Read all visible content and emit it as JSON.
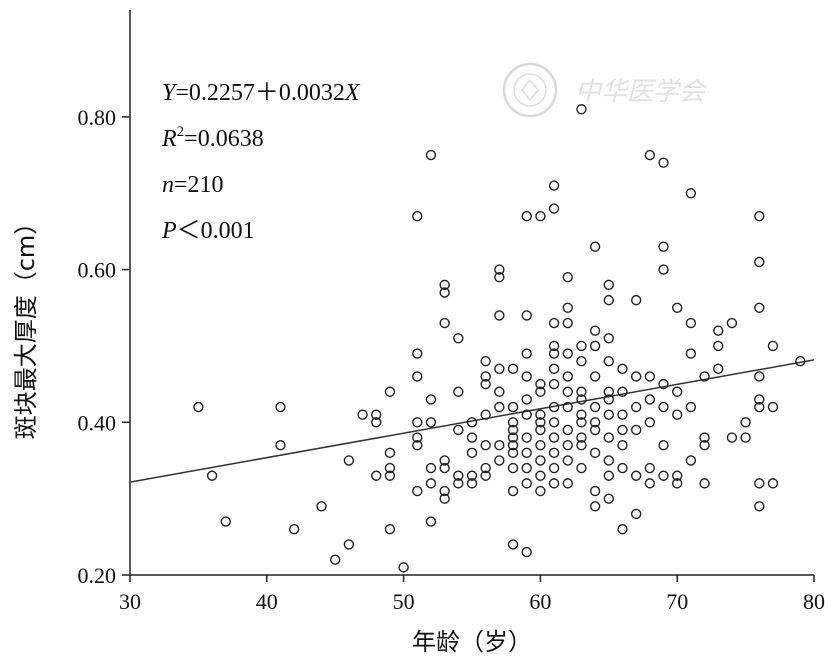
{
  "chart_data": {
    "type": "scatter",
    "xlabel": "年龄（岁）",
    "ylabel": "斑块最大厚度（cm）",
    "xlim": [
      30,
      80
    ],
    "ylim": [
      0.2,
      0.94
    ],
    "xticks": [
      30,
      40,
      50,
      60,
      70,
      80
    ],
    "yticks": [
      0.2,
      0.4,
      0.6,
      0.8
    ],
    "ytick_labels": [
      "0.20",
      "0.40",
      "0.60",
      "0.80"
    ],
    "xtick_labels": [
      "30",
      "40",
      "50",
      "60",
      "70",
      "80"
    ],
    "grid": false,
    "regression": {
      "intercept": 0.2257,
      "slope": 0.0032
    },
    "stats": {
      "equation_var": "Y",
      "equation_rest": "=0.2257＋0.0032",
      "equation_x": "X",
      "r2_var": "R",
      "r2_sup": "2",
      "r2_rest": "=0.0638",
      "n_var": "n",
      "n_rest": "=210",
      "p_var": "P",
      "p_rest": "＜0.001"
    },
    "watermark_text": "中华医学会",
    "points": [
      [
        35,
        0.42
      ],
      [
        36,
        0.33
      ],
      [
        37,
        0.27
      ],
      [
        41,
        0.42
      ],
      [
        41,
        0.37
      ],
      [
        42,
        0.26
      ],
      [
        44,
        0.29
      ],
      [
        45,
        0.22
      ],
      [
        46,
        0.24
      ],
      [
        46,
        0.35
      ],
      [
        47,
        0.41
      ],
      [
        48,
        0.41
      ],
      [
        48,
        0.4
      ],
      [
        48,
        0.33
      ],
      [
        49,
        0.44
      ],
      [
        49,
        0.36
      ],
      [
        49,
        0.34
      ],
      [
        49,
        0.33
      ],
      [
        49,
        0.26
      ],
      [
        50,
        0.21
      ],
      [
        51,
        0.67
      ],
      [
        51,
        0.49
      ],
      [
        51,
        0.46
      ],
      [
        51,
        0.38
      ],
      [
        51,
        0.37
      ],
      [
        51,
        0.31
      ],
      [
        52,
        0.75
      ],
      [
        52,
        0.43
      ],
      [
        52,
        0.4
      ],
      [
        52,
        0.34
      ],
      [
        52,
        0.32
      ],
      [
        52,
        0.27
      ],
      [
        53,
        0.58
      ],
      [
        53,
        0.57
      ],
      [
        53,
        0.53
      ],
      [
        53,
        0.35
      ],
      [
        53,
        0.34
      ],
      [
        53,
        0.31
      ],
      [
        53,
        0.3
      ],
      [
        54,
        0.51
      ],
      [
        54,
        0.44
      ],
      [
        54,
        0.39
      ],
      [
        54,
        0.33
      ],
      [
        54,
        0.32
      ],
      [
        55,
        0.4
      ],
      [
        55,
        0.36
      ],
      [
        55,
        0.33
      ],
      [
        55,
        0.32
      ],
      [
        56,
        0.48
      ],
      [
        56,
        0.46
      ],
      [
        56,
        0.45
      ],
      [
        56,
        0.41
      ],
      [
        56,
        0.37
      ],
      [
        56,
        0.34
      ],
      [
        56,
        0.33
      ],
      [
        57,
        0.6
      ],
      [
        57,
        0.59
      ],
      [
        57,
        0.54
      ],
      [
        57,
        0.47
      ],
      [
        57,
        0.44
      ],
      [
        57,
        0.42
      ],
      [
        57,
        0.37
      ],
      [
        57,
        0.35
      ],
      [
        58,
        0.47
      ],
      [
        58,
        0.42
      ],
      [
        58,
        0.4
      ],
      [
        58,
        0.39
      ],
      [
        58,
        0.37
      ],
      [
        58,
        0.36
      ],
      [
        58,
        0.34
      ],
      [
        58,
        0.31
      ],
      [
        58,
        0.24
      ],
      [
        59,
        0.67
      ],
      [
        59,
        0.54
      ],
      [
        59,
        0.49
      ],
      [
        59,
        0.46
      ],
      [
        59,
        0.43
      ],
      [
        59,
        0.41
      ],
      [
        59,
        0.38
      ],
      [
        59,
        0.36
      ],
      [
        59,
        0.34
      ],
      [
        59,
        0.32
      ],
      [
        59,
        0.23
      ],
      [
        60,
        0.67
      ],
      [
        60,
        0.45
      ],
      [
        60,
        0.44
      ],
      [
        60,
        0.4
      ],
      [
        60,
        0.39
      ],
      [
        60,
        0.37
      ],
      [
        60,
        0.35
      ],
      [
        60,
        0.33
      ],
      [
        60,
        0.31
      ],
      [
        61,
        0.71
      ],
      [
        61,
        0.68
      ],
      [
        61,
        0.53
      ],
      [
        61,
        0.5
      ],
      [
        61,
        0.49
      ],
      [
        61,
        0.47
      ],
      [
        61,
        0.45
      ],
      [
        61,
        0.42
      ],
      [
        61,
        0.4
      ],
      [
        61,
        0.38
      ],
      [
        61,
        0.36
      ],
      [
        61,
        0.34
      ],
      [
        61,
        0.32
      ],
      [
        62,
        0.59
      ],
      [
        62,
        0.55
      ],
      [
        62,
        0.53
      ],
      [
        62,
        0.49
      ],
      [
        62,
        0.46
      ],
      [
        62,
        0.44
      ],
      [
        62,
        0.42
      ],
      [
        62,
        0.39
      ],
      [
        62,
        0.37
      ],
      [
        62,
        0.35
      ],
      [
        62,
        0.32
      ],
      [
        63,
        0.81
      ],
      [
        63,
        0.5
      ],
      [
        63,
        0.48
      ],
      [
        63,
        0.44
      ],
      [
        63,
        0.43
      ],
      [
        63,
        0.41
      ],
      [
        63,
        0.38
      ],
      [
        63,
        0.37
      ],
      [
        63,
        0.34
      ],
      [
        64,
        0.63
      ],
      [
        64,
        0.52
      ],
      [
        64,
        0.5
      ],
      [
        64,
        0.46
      ],
      [
        64,
        0.42
      ],
      [
        64,
        0.4
      ],
      [
        64,
        0.39
      ],
      [
        64,
        0.36
      ],
      [
        64,
        0.31
      ],
      [
        64,
        0.29
      ],
      [
        65,
        0.58
      ],
      [
        65,
        0.56
      ],
      [
        65,
        0.51
      ],
      [
        65,
        0.48
      ],
      [
        65,
        0.44
      ],
      [
        65,
        0.43
      ],
      [
        65,
        0.41
      ],
      [
        65,
        0.38
      ],
      [
        65,
        0.35
      ],
      [
        65,
        0.33
      ],
      [
        65,
        0.3
      ],
      [
        66,
        0.47
      ],
      [
        66,
        0.44
      ],
      [
        66,
        0.41
      ],
      [
        66,
        0.37
      ],
      [
        66,
        0.34
      ],
      [
        66,
        0.26
      ],
      [
        67,
        0.56
      ],
      [
        67,
        0.46
      ],
      [
        67,
        0.42
      ],
      [
        67,
        0.39
      ],
      [
        67,
        0.33
      ],
      [
        67,
        0.28
      ],
      [
        68,
        0.75
      ],
      [
        68,
        0.46
      ],
      [
        68,
        0.43
      ],
      [
        68,
        0.4
      ],
      [
        68,
        0.34
      ],
      [
        68,
        0.32
      ],
      [
        69,
        0.74
      ],
      [
        69,
        0.63
      ],
      [
        69,
        0.6
      ],
      [
        69,
        0.45
      ],
      [
        69,
        0.42
      ],
      [
        69,
        0.37
      ],
      [
        69,
        0.33
      ],
      [
        70,
        0.55
      ],
      [
        70,
        0.44
      ],
      [
        70,
        0.41
      ],
      [
        70,
        0.33
      ],
      [
        70,
        0.32
      ],
      [
        71,
        0.7
      ],
      [
        71,
        0.53
      ],
      [
        71,
        0.49
      ],
      [
        71,
        0.42
      ],
      [
        71,
        0.35
      ],
      [
        72,
        0.46
      ],
      [
        72,
        0.38
      ],
      [
        72,
        0.37
      ],
      [
        72,
        0.32
      ],
      [
        73,
        0.52
      ],
      [
        73,
        0.5
      ],
      [
        73,
        0.47
      ],
      [
        74,
        0.53
      ],
      [
        74,
        0.38
      ],
      [
        75,
        0.4
      ],
      [
        75,
        0.38
      ],
      [
        76,
        0.67
      ],
      [
        76,
        0.61
      ],
      [
        76,
        0.55
      ],
      [
        76,
        0.46
      ],
      [
        76,
        0.43
      ],
      [
        76,
        0.42
      ],
      [
        76,
        0.32
      ],
      [
        76,
        0.29
      ],
      [
        77,
        0.5
      ],
      [
        77,
        0.42
      ],
      [
        77,
        0.32
      ],
      [
        79,
        0.48
      ],
      [
        51,
        0.4
      ],
      [
        60,
        0.41
      ],
      [
        63,
        0.4
      ],
      [
        66,
        0.39
      ],
      [
        58,
        0.38
      ],
      [
        55,
        0.38
      ]
    ]
  }
}
